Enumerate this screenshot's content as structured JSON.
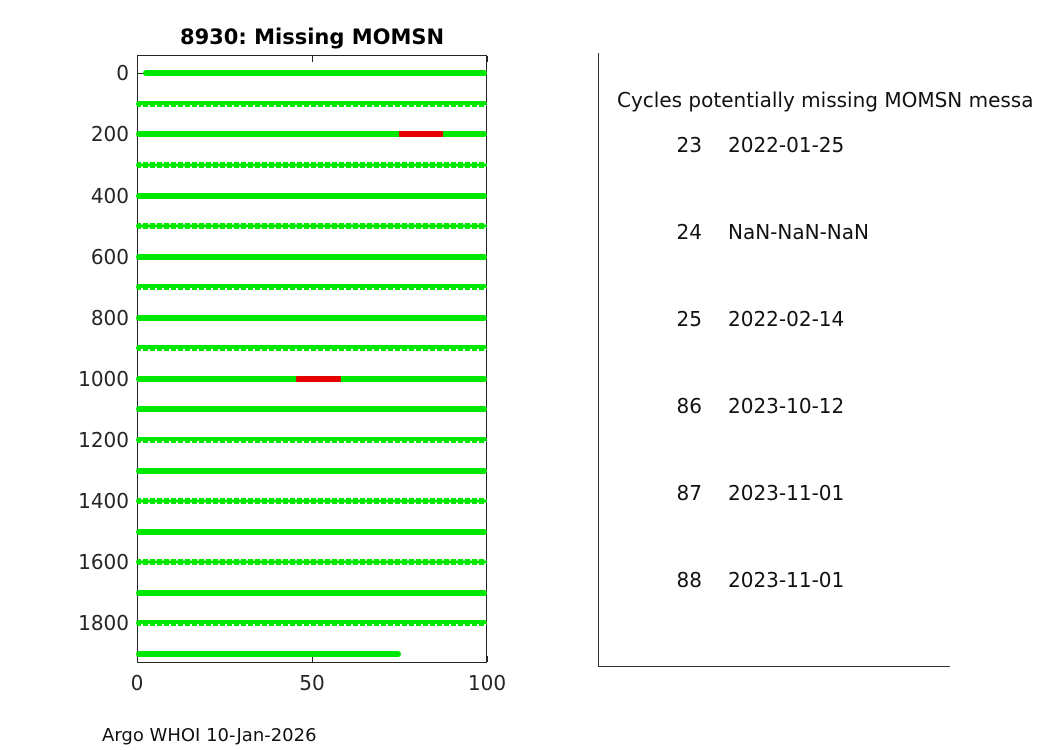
{
  "title": "8930: Missing MOMSN",
  "footer_note": "Argo WHOI 10-Jan-2026",
  "panel": {
    "heading": "Cycles potentially missing MOMSN messa",
    "rows": [
      {
        "cycle": "23",
        "date": "2022-01-25"
      },
      {
        "cycle": "24",
        "date": "NaN-NaN-NaN"
      },
      {
        "cycle": "25",
        "date": "2022-02-14"
      },
      {
        "cycle": "86",
        "date": "2023-10-12"
      },
      {
        "cycle": "87",
        "date": "2023-11-01"
      },
      {
        "cycle": "88",
        "date": "2023-11-01"
      }
    ]
  },
  "chart_data": {
    "type": "line",
    "title": "8930: Missing MOMSN",
    "xlabel": "",
    "ylabel": "",
    "xlim": [
      0,
      100
    ],
    "ylim": [
      -60,
      1930
    ],
    "y_axis_reversed": true,
    "grid": false,
    "x_tick_values": [
      0,
      50,
      100
    ],
    "x_tick_labels": [
      "0",
      "50",
      "100"
    ],
    "y_tick_values": [
      0,
      200,
      400,
      600,
      800,
      1000,
      1200,
      1400,
      1600,
      1800
    ],
    "y_tick_labels": [
      "0",
      "200",
      "400",
      "600",
      "800",
      "1000",
      "1200",
      "1400",
      "1600",
      "1800"
    ],
    "colors": {
      "received": "#00e800",
      "missing": "#e60000",
      "axis": "#262626"
    },
    "series": [
      {
        "name": "received-momsn",
        "color": "#00e800",
        "rows": [
          {
            "y": 0,
            "x_start": 2.5,
            "x_end": 99,
            "style": "solid"
          },
          {
            "y": 100,
            "x_start": 0.5,
            "x_end": 99,
            "style": "light"
          },
          {
            "y": 200,
            "x_start": 0.5,
            "x_end": 99,
            "style": "solid"
          },
          {
            "y": 300,
            "x_start": 0.5,
            "x_end": 99,
            "style": "dotted"
          },
          {
            "y": 400,
            "x_start": 0.5,
            "x_end": 99,
            "style": "solid"
          },
          {
            "y": 500,
            "x_start": 0.5,
            "x_end": 99,
            "style": "dotted"
          },
          {
            "y": 600,
            "x_start": 0.5,
            "x_end": 99,
            "style": "solid"
          },
          {
            "y": 700,
            "x_start": 0.5,
            "x_end": 99,
            "style": "light"
          },
          {
            "y": 800,
            "x_start": 0.5,
            "x_end": 99,
            "style": "solid"
          },
          {
            "y": 900,
            "x_start": 0.5,
            "x_end": 99,
            "style": "light"
          },
          {
            "y": 1000,
            "x_start": 0.5,
            "x_end": 99,
            "style": "solid"
          },
          {
            "y": 1100,
            "x_start": 0.5,
            "x_end": 99,
            "style": "solid"
          },
          {
            "y": 1200,
            "x_start": 0.5,
            "x_end": 99,
            "style": "light"
          },
          {
            "y": 1300,
            "x_start": 0.5,
            "x_end": 99,
            "style": "solid"
          },
          {
            "y": 1400,
            "x_start": 0.5,
            "x_end": 99,
            "style": "dotted"
          },
          {
            "y": 1500,
            "x_start": 0.5,
            "x_end": 99,
            "style": "solid"
          },
          {
            "y": 1600,
            "x_start": 0.5,
            "x_end": 99,
            "style": "dotted"
          },
          {
            "y": 1700,
            "x_start": 0.5,
            "x_end": 99,
            "style": "solid"
          },
          {
            "y": 1800,
            "x_start": 0.5,
            "x_end": 99,
            "style": "light"
          },
          {
            "y": 1900,
            "x_start": 0.5,
            "x_end": 74.5,
            "style": "solid"
          }
        ]
      },
      {
        "name": "missing-momsn",
        "color": "#e60000",
        "segments": [
          {
            "y": 200,
            "x_start": 74.8,
            "x_end": 87.3
          },
          {
            "y": 1000,
            "x_start": 45.5,
            "x_end": 58.2
          }
        ]
      }
    ]
  }
}
